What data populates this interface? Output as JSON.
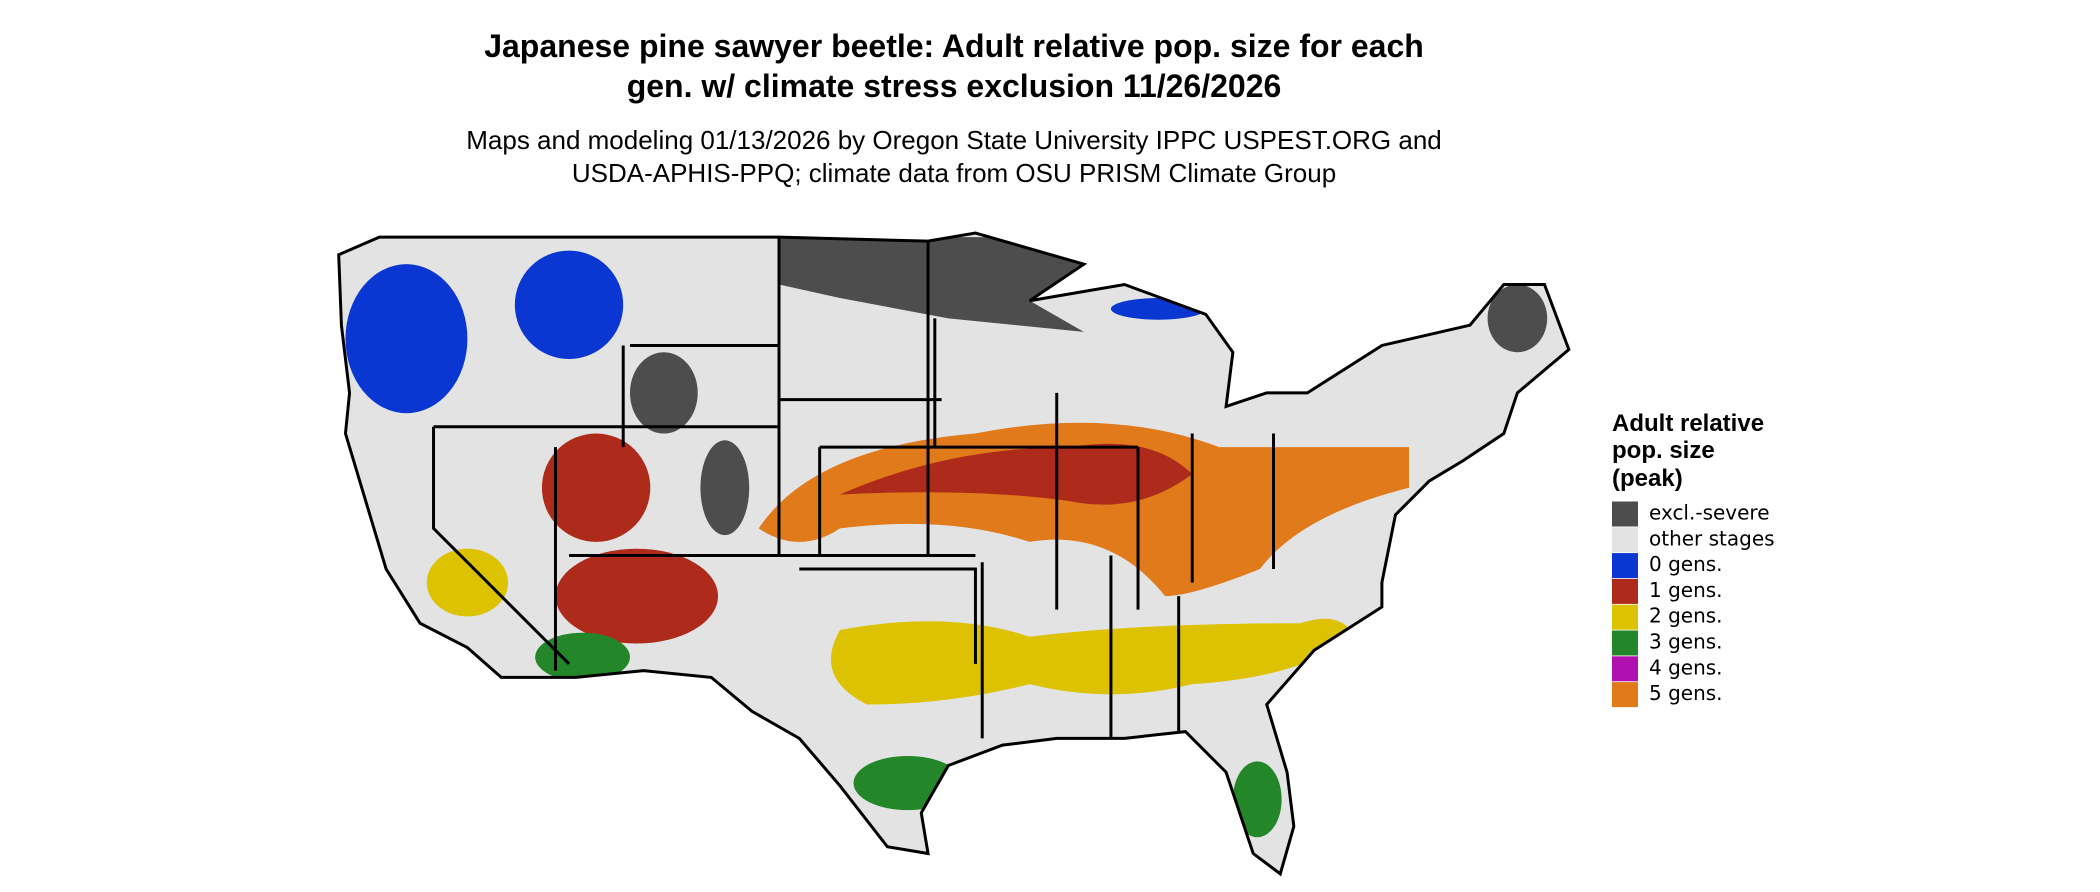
{
  "header": {
    "title_lines": [
      "Japanese pine sawyer beetle: Adult relative pop. size for each",
      "gen. w/ climate stress exclusion 11/26/2026"
    ],
    "subtitle_lines": [
      "Maps and modeling 01/13/2026 by Oregon State University IPPC USPEST.ORG and",
      "USDA-APHIS-PPQ; climate data from OSU PRISM Climate Group"
    ]
  },
  "legend": {
    "title_lines": [
      "Adult relative",
      "pop. size",
      "(peak)"
    ],
    "items": [
      {
        "label": "excl.-severe",
        "color": "#4d4d4d"
      },
      {
        "label": "other stages",
        "color": "#e3e3e3"
      },
      {
        "label": "0 gens.",
        "color": "#0a37d1"
      },
      {
        "label": "1 gens.",
        "color": "#ae2a1b"
      },
      {
        "label": "2 gens.",
        "color": "#dcc200"
      },
      {
        "label": "3 gens.",
        "color": "#23872a"
      },
      {
        "label": "4 gens.",
        "color": "#b010b0"
      },
      {
        "label": "5 gens.",
        "color": "#e07a1b"
      }
    ]
  }
}
